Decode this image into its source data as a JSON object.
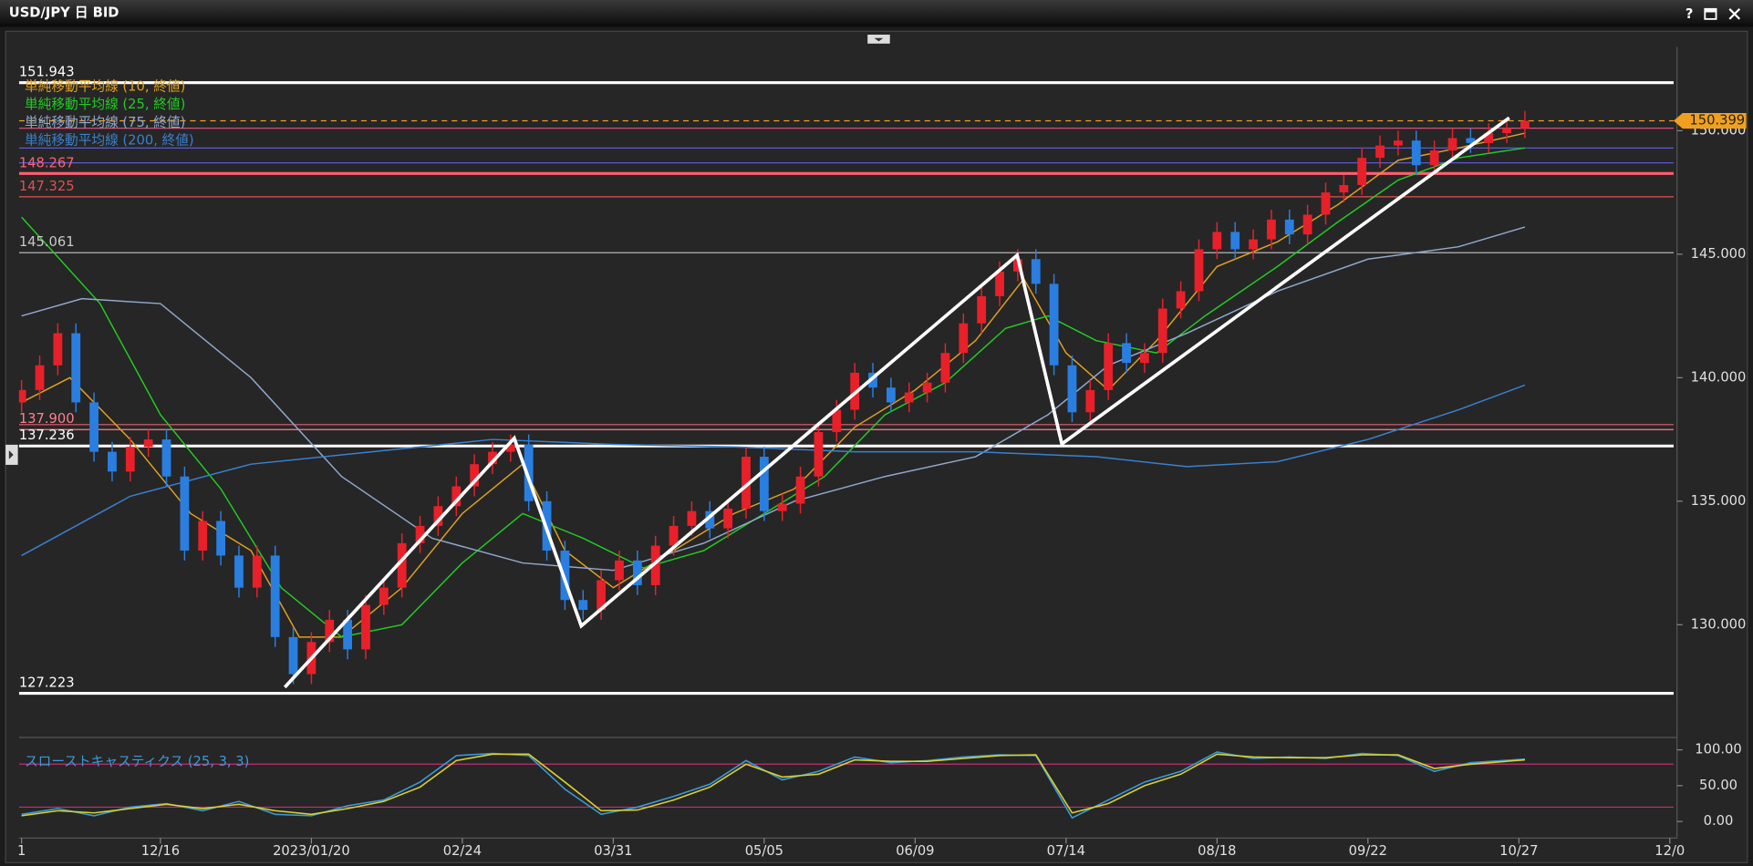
{
  "window": {
    "title": "USD/JPY 日 BID",
    "help": "?"
  },
  "chart_data": {
    "type": "candlestick",
    "x": [
      2,
      5,
      8,
      11,
      14,
      17,
      20,
      23,
      26,
      29,
      32,
      35,
      38,
      41,
      44,
      47,
      50,
      53,
      56,
      59,
      62,
      65,
      68,
      71,
      74,
      77,
      80,
      83,
      86,
      89,
      92,
      95,
      98,
      101,
      104,
      107,
      110,
      113,
      116,
      119,
      122,
      125,
      128,
      131,
      134,
      137,
      140,
      143,
      146,
      149,
      152,
      155,
      158,
      161,
      164,
      167,
      170,
      173,
      176,
      179,
      182,
      185,
      188,
      191,
      194,
      197,
      200,
      203,
      206,
      209,
      212,
      215,
      218,
      221,
      224,
      227,
      230,
      233,
      236,
      239,
      242,
      245,
      248,
      251
    ],
    "ohlc": [
      [
        139.0,
        139.9,
        138.6,
        139.5
      ],
      [
        139.5,
        140.9,
        139.1,
        140.5
      ],
      [
        140.5,
        142.2,
        140.1,
        141.8
      ],
      [
        141.8,
        142.2,
        138.6,
        139.0
      ],
      [
        139.0,
        139.4,
        136.6,
        137.0
      ],
      [
        137.0,
        137.4,
        135.8,
        136.2
      ],
      [
        136.2,
        137.6,
        135.8,
        137.2
      ],
      [
        137.2,
        137.9,
        136.8,
        137.5
      ],
      [
        137.5,
        137.9,
        135.6,
        136.0
      ],
      [
        136.0,
        136.4,
        132.6,
        133.0
      ],
      [
        133.0,
        134.6,
        132.6,
        134.2
      ],
      [
        134.2,
        134.6,
        132.4,
        132.8
      ],
      [
        132.8,
        133.2,
        131.1,
        131.5
      ],
      [
        131.5,
        133.2,
        131.1,
        132.8
      ],
      [
        132.8,
        133.2,
        129.1,
        129.5
      ],
      [
        129.5,
        129.9,
        127.6,
        128.0
      ],
      [
        128.0,
        129.7,
        127.6,
        129.3
      ],
      [
        129.3,
        130.6,
        128.9,
        130.2
      ],
      [
        130.2,
        130.6,
        128.6,
        129.0
      ],
      [
        129.0,
        131.2,
        128.6,
        130.8
      ],
      [
        130.8,
        131.9,
        130.4,
        131.5
      ],
      [
        131.5,
        133.7,
        131.1,
        133.3
      ],
      [
        133.3,
        134.4,
        132.9,
        134.0
      ],
      [
        134.0,
        135.2,
        133.6,
        134.8
      ],
      [
        134.8,
        136.0,
        134.4,
        135.6
      ],
      [
        135.6,
        136.9,
        135.2,
        136.5
      ],
      [
        136.5,
        137.4,
        136.1,
        137.0
      ],
      [
        137.0,
        137.7,
        136.6,
        137.3
      ],
      [
        137.3,
        137.7,
        134.6,
        135.0
      ],
      [
        135.0,
        135.4,
        132.6,
        133.0
      ],
      [
        133.0,
        133.4,
        130.6,
        131.0
      ],
      [
        131.0,
        131.4,
        130.2,
        130.6
      ],
      [
        130.6,
        132.2,
        130.2,
        131.8
      ],
      [
        131.8,
        133.0,
        131.4,
        132.6
      ],
      [
        132.6,
        133.0,
        131.2,
        131.6
      ],
      [
        131.6,
        133.6,
        131.2,
        133.2
      ],
      [
        133.2,
        134.4,
        132.8,
        134.0
      ],
      [
        134.0,
        135.0,
        133.6,
        134.6
      ],
      [
        134.6,
        135.0,
        133.5,
        133.9
      ],
      [
        133.9,
        135.1,
        133.5,
        134.7
      ],
      [
        134.7,
        137.2,
        134.3,
        136.8
      ],
      [
        136.8,
        137.2,
        134.2,
        134.6
      ],
      [
        134.6,
        135.3,
        134.2,
        134.9
      ],
      [
        134.9,
        136.4,
        134.5,
        136.0
      ],
      [
        136.0,
        138.2,
        135.6,
        137.8
      ],
      [
        137.8,
        139.1,
        137.4,
        138.7
      ],
      [
        138.7,
        140.6,
        138.3,
        140.2
      ],
      [
        140.2,
        140.6,
        139.2,
        139.6
      ],
      [
        139.6,
        140.0,
        138.6,
        139.0
      ],
      [
        139.0,
        139.8,
        138.6,
        139.4
      ],
      [
        139.4,
        140.2,
        139.0,
        139.8
      ],
      [
        139.8,
        141.4,
        139.4,
        141.0
      ],
      [
        141.0,
        142.6,
        140.6,
        142.2
      ],
      [
        142.2,
        143.7,
        141.8,
        143.3
      ],
      [
        143.3,
        144.7,
        142.9,
        144.3
      ],
      [
        144.3,
        145.2,
        143.9,
        144.8
      ],
      [
        144.8,
        145.2,
        143.4,
        143.8
      ],
      [
        143.8,
        144.2,
        140.1,
        140.5
      ],
      [
        140.5,
        140.9,
        138.2,
        138.6
      ],
      [
        138.6,
        139.9,
        138.2,
        139.5
      ],
      [
        139.5,
        141.8,
        139.1,
        141.4
      ],
      [
        141.4,
        141.8,
        140.2,
        140.6
      ],
      [
        140.6,
        141.4,
        140.2,
        141.0
      ],
      [
        141.0,
        143.2,
        140.6,
        142.8
      ],
      [
        142.8,
        143.9,
        142.4,
        143.5
      ],
      [
        143.5,
        145.6,
        143.1,
        145.2
      ],
      [
        145.2,
        146.3,
        144.8,
        145.9
      ],
      [
        145.9,
        146.3,
        144.8,
        145.2
      ],
      [
        145.2,
        146.0,
        144.8,
        145.6
      ],
      [
        145.6,
        146.8,
        145.2,
        146.4
      ],
      [
        146.4,
        146.8,
        145.4,
        145.8
      ],
      [
        145.8,
        147.0,
        145.4,
        146.6
      ],
      [
        146.6,
        147.9,
        146.2,
        147.5
      ],
      [
        147.5,
        148.2,
        147.1,
        147.8
      ],
      [
        147.8,
        149.3,
        147.4,
        148.9
      ],
      [
        148.9,
        149.8,
        148.5,
        149.4
      ],
      [
        149.4,
        150.0,
        149.0,
        149.6
      ],
      [
        149.6,
        150.0,
        148.2,
        148.6
      ],
      [
        148.6,
        149.6,
        148.2,
        149.2
      ],
      [
        149.2,
        150.1,
        148.8,
        149.7
      ],
      [
        149.7,
        150.1,
        149.1,
        149.5
      ],
      [
        149.5,
        150.3,
        149.1,
        149.9
      ],
      [
        149.9,
        150.5,
        149.5,
        150.1
      ],
      [
        150.1,
        150.8,
        149.7,
        150.4
      ]
    ],
    "up_color": "#e8202a",
    "down_color": "#2a7ee0",
    "xlim": [
      0,
      276
    ],
    "ylim": [
      125.57,
      153.39
    ],
    "xticks": [
      {
        "value": 2,
        "label": "1"
      },
      {
        "value": 25,
        "label": "12/16"
      },
      {
        "value": 50,
        "label": "2023/01/20"
      },
      {
        "value": 75,
        "label": "02/24"
      },
      {
        "value": 100,
        "label": "03/31"
      },
      {
        "value": 125,
        "label": "05/05"
      },
      {
        "value": 150,
        "label": "06/09"
      },
      {
        "value": 175,
        "label": "07/14"
      },
      {
        "value": 200,
        "label": "08/18"
      },
      {
        "value": 225,
        "label": "09/22"
      },
      {
        "value": 250,
        "label": "10/27"
      },
      {
        "value": 275,
        "label": "12/0"
      }
    ],
    "yticks": [
      {
        "value": 130,
        "label": "130.000"
      },
      {
        "value": 135,
        "label": "135.000"
      },
      {
        "value": 140,
        "label": "140.000"
      },
      {
        "value": 145,
        "label": "145.000"
      },
      {
        "value": 150,
        "label": "150.000"
      }
    ],
    "series": [
      {
        "name": "単純移動平均線 (10, 終値)",
        "color": "#e0a020",
        "x": [
          2,
          10,
          20,
          30,
          40,
          48,
          55,
          65,
          75,
          85,
          92,
          100,
          110,
          120,
          130,
          140,
          150,
          160,
          168,
          175,
          182,
          190,
          200,
          210,
          220,
          230,
          240,
          251
        ],
        "values": [
          139,
          140,
          137.5,
          134.5,
          133,
          129.5,
          129.5,
          131.5,
          134.5,
          136.5,
          133,
          131.5,
          133,
          134.5,
          135.5,
          138,
          139.5,
          141.5,
          144,
          141,
          139.5,
          141.5,
          144.5,
          145.5,
          147,
          148.8,
          149.3,
          149.9
        ]
      },
      {
        "name": "単純移動平均線 (25, 終値)",
        "color": "#22cc22",
        "x": [
          2,
          15,
          25,
          35,
          45,
          55,
          65,
          75,
          85,
          95,
          105,
          115,
          125,
          135,
          145,
          155,
          165,
          172,
          180,
          190,
          198,
          210,
          220,
          230,
          240,
          251
        ],
        "values": [
          146.5,
          143,
          138.5,
          135.5,
          131.5,
          129.5,
          130,
          132.5,
          134.5,
          133.5,
          132.3,
          133,
          134.5,
          136,
          138.5,
          139.8,
          142,
          142.5,
          141.5,
          141,
          142.5,
          144.5,
          146.3,
          148,
          148.9,
          149.3
        ]
      },
      {
        "name": "単純移動平均線 (75, 終値)",
        "color": "#8fa8cc",
        "x": [
          2,
          12,
          25,
          40,
          55,
          70,
          85,
          100,
          115,
          130,
          145,
          160,
          172,
          182,
          195,
          210,
          225,
          240,
          251
        ],
        "values": [
          142.5,
          143.2,
          143,
          140,
          136,
          133.5,
          132.5,
          132.2,
          133.3,
          135,
          136,
          136.8,
          138.5,
          140.5,
          141.8,
          143.5,
          144.8,
          145.3,
          146.1
        ]
      },
      {
        "name": "単純移動平均線 (200, 終値)",
        "color": "#3a80d0",
        "x": [
          2,
          20,
          40,
          60,
          80,
          100,
          120,
          140,
          160,
          180,
          195,
          210,
          225,
          240,
          251
        ],
        "values": [
          132.8,
          135.2,
          136.5,
          137,
          137.5,
          137.3,
          137.2,
          137,
          137,
          136.8,
          136.4,
          136.6,
          137.5,
          138.7,
          139.7
        ]
      }
    ],
    "levels": [
      {
        "value": 151.943,
        "label": "151.943",
        "color": "#ffffff",
        "style": "thick"
      },
      {
        "value": 150.1,
        "color": "#d8507a",
        "style": "thin"
      },
      {
        "value": 149.3,
        "color": "#5a5ad0",
        "style": "thin"
      },
      {
        "value": 148.7,
        "color": "#5a5ad0",
        "style": "thin"
      },
      {
        "value": 148.267,
        "label": "148.267",
        "color": "#ff6070",
        "style": "thick"
      },
      {
        "value": 147.325,
        "label": "147.325",
        "color": "#e05050",
        "style": "thin"
      },
      {
        "value": 145.061,
        "label": "145.061",
        "color": "#c8c8c8",
        "style": "thin"
      },
      {
        "value": 138.1,
        "color": "#e06070",
        "style": "thin"
      },
      {
        "value": 137.9,
        "label": "137.900",
        "color": "#ff8090",
        "style": "thin"
      },
      {
        "value": 137.236,
        "label": "137.236",
        "color": "#ffffff",
        "style": "thick"
      },
      {
        "value": 127.223,
        "label": "127.223",
        "color": "#ffffff",
        "style": "thick"
      }
    ],
    "last_price": {
      "value": 150.399,
      "label": "150.399",
      "color": "#f0a020"
    },
    "drawings": [
      {
        "color": "#ffffff",
        "x": [
          45.6,
          83.6,
          94.7,
          166.9,
          174.3,
          248.4
        ],
        "values": [
          127.47,
          137.55,
          129.95,
          144.96,
          137.32,
          150.52
        ]
      }
    ],
    "indicator": {
      "title": "スローストキャスティクス (25, 3, 3)",
      "color": "#3a9ad9",
      "ylim": [
        -20,
        111
      ],
      "yticks": [
        {
          "value": 100,
          "label": "100.00"
        },
        {
          "value": 50,
          "label": "50.00"
        },
        {
          "value": 0,
          "label": "0.00"
        }
      ],
      "levels": [
        80,
        20
      ],
      "level_color": "#c03070",
      "series": [
        {
          "color": "#3a9ad9",
          "x": [
            2,
            8,
            14,
            20,
            26,
            32,
            38,
            44,
            50,
            56,
            62,
            68,
            74,
            80,
            86,
            92,
            98,
            104,
            110,
            116,
            122,
            128,
            134,
            140,
            146,
            152,
            158,
            164,
            170,
            176,
            182,
            188,
            194,
            200,
            206,
            212,
            218,
            224,
            230,
            236,
            242,
            251
          ],
          "values": [
            10,
            18,
            8,
            20,
            25,
            15,
            28,
            10,
            8,
            22,
            30,
            55,
            92,
            95,
            92,
            45,
            10,
            20,
            35,
            52,
            85,
            58,
            70,
            90,
            82,
            85,
            90,
            93,
            92,
            5,
            30,
            55,
            70,
            97,
            88,
            90,
            88,
            95,
            92,
            70,
            82,
            87
          ]
        },
        {
          "color": "#d8d030",
          "x": [
            2,
            8,
            14,
            20,
            26,
            32,
            38,
            44,
            50,
            56,
            62,
            68,
            74,
            80,
            86,
            92,
            98,
            104,
            110,
            116,
            122,
            128,
            134,
            140,
            146,
            152,
            158,
            164,
            170,
            176,
            182,
            188,
            194,
            200,
            206,
            212,
            218,
            224,
            230,
            236,
            242,
            251
          ],
          "values": [
            8,
            15,
            12,
            18,
            24,
            18,
            24,
            15,
            10,
            18,
            28,
            48,
            85,
            94,
            94,
            55,
            15,
            16,
            30,
            48,
            80,
            62,
            66,
            86,
            84,
            84,
            88,
            92,
            93,
            12,
            25,
            50,
            66,
            94,
            90,
            89,
            89,
            93,
            93,
            74,
            80,
            86
          ]
        }
      ]
    }
  }
}
